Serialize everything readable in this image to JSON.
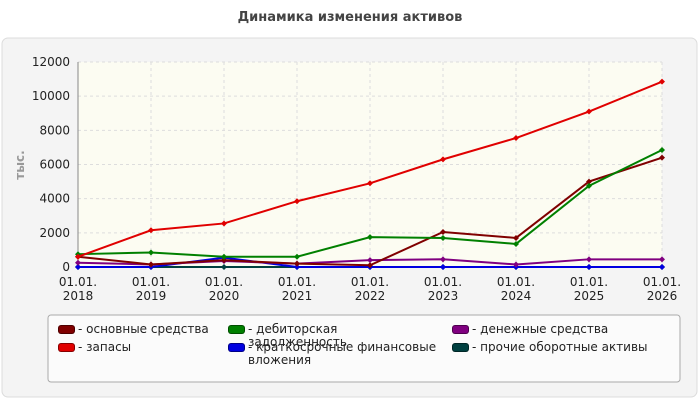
{
  "chart_data": {
    "type": "line",
    "title": "Динамика изменения активов",
    "y_label": "тыс.",
    "categories": [
      "01.01.\n2018",
      "01.01.\n2019",
      "01.01.\n2020",
      "01.01.\n2021",
      "01.01.\n2022",
      "01.01.\n2023",
      "01.01.\n2024",
      "01.01.\n2025",
      "01.01.\n2026"
    ],
    "series": [
      {
        "name": "- основные средства",
        "color": "#800000",
        "values": [
          600,
          150,
          400,
          200,
          100,
          2050,
          1700,
          5000,
          6400
        ]
      },
      {
        "name": "- запасы",
        "color": "#e00000",
        "values": [
          600,
          2150,
          2550,
          3850,
          4900,
          6300,
          7550,
          9100,
          10850
        ]
      },
      {
        "name": "- дебиторская задолженность",
        "color": "#008000",
        "values": [
          750,
          850,
          600,
          600,
          1750,
          1700,
          1350,
          4750,
          6850
        ]
      },
      {
        "name": "- краткосрочные финансовые вложения",
        "color": "#0000e0",
        "values": [
          0,
          0,
          550,
          0,
          0,
          0,
          0,
          0,
          0
        ]
      },
      {
        "name": "- денежные средства",
        "color": "#800080",
        "values": [
          250,
          150,
          350,
          200,
          400,
          450,
          150,
          450,
          450
        ]
      },
      {
        "name": "- прочие оборотные активы",
        "color": "#004040",
        "values": [
          0,
          0,
          0,
          0,
          0,
          0,
          0,
          0,
          0
        ]
      }
    ],
    "ylim": [
      0,
      12000
    ],
    "yticks": [
      0,
      2000,
      4000,
      6000,
      8000,
      10000,
      12000
    ],
    "grid": true
  }
}
